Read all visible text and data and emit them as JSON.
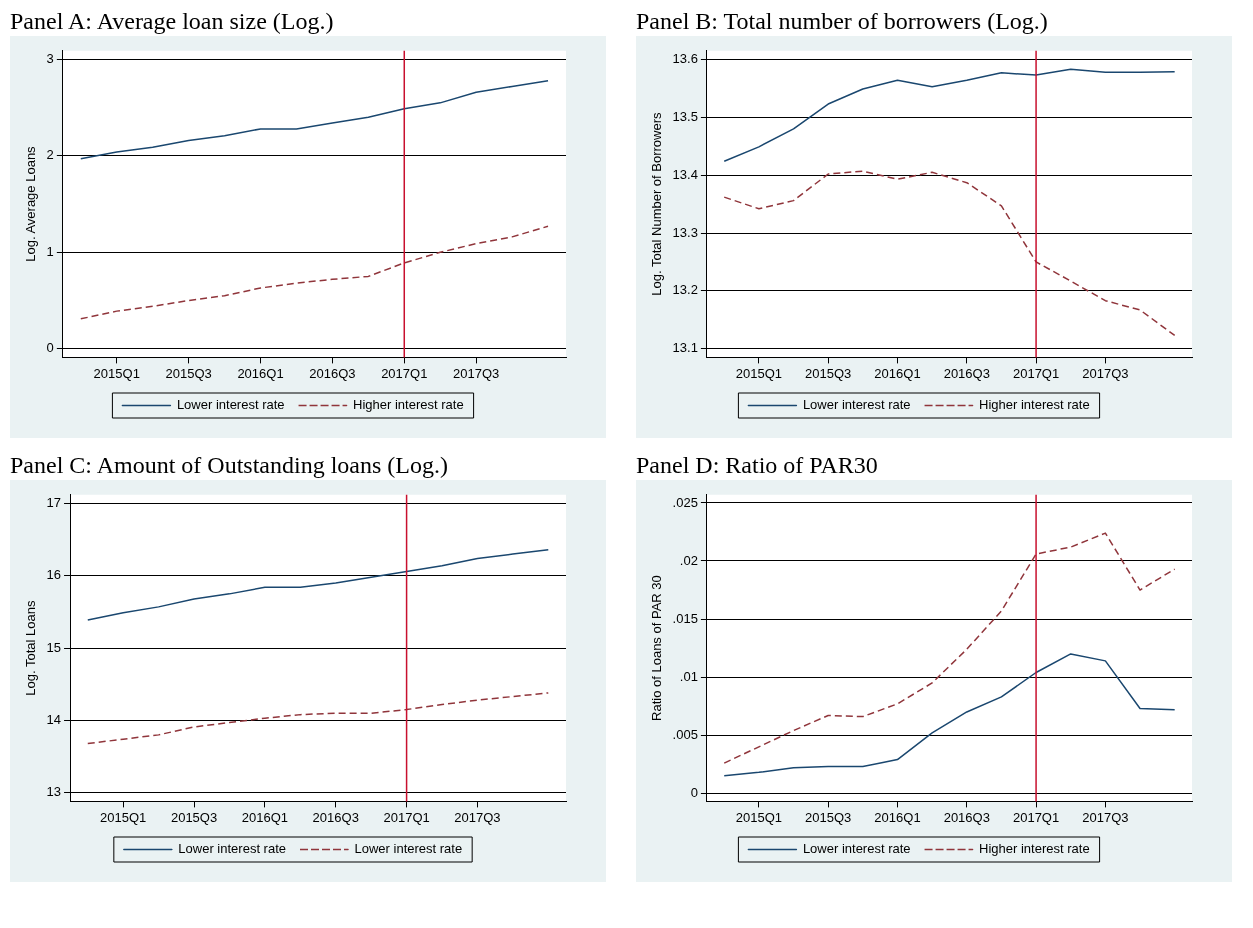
{
  "chart_data": [
    {
      "type": "line",
      "title": "Panel A: Average loan size (Log.)",
      "ylabel": "Log. Average Loans",
      "categories": [
        null,
        "2015Q1",
        null,
        "2015Q3",
        null,
        "2016Q1",
        null,
        "2016Q3",
        null,
        "2017Q1",
        null,
        "2017Q3",
        null,
        null
      ],
      "series": [
        {
          "name": "Lower interest rate",
          "color": "#1a476f",
          "line_style": "solid",
          "values": [
            1.97,
            2.04,
            2.09,
            2.16,
            2.21,
            2.28,
            2.28,
            2.34,
            2.4,
            2.49,
            2.55,
            2.66,
            2.72,
            2.78
          ]
        },
        {
          "name": "Higher interest rate",
          "color": "#90353b",
          "line_style": "dashed",
          "values": [
            0.31,
            0.39,
            0.44,
            0.5,
            0.55,
            0.63,
            0.68,
            0.72,
            0.75,
            0.89,
            1.0,
            1.09,
            1.16,
            1.27
          ]
        }
      ],
      "ylim": [
        -0.09,
        3.09
      ],
      "yticks": [
        0,
        1,
        2,
        3
      ],
      "grid": "y",
      "legend": "bottom",
      "marker": "none",
      "ref_lines": [
        {
          "axis": "x",
          "value": "2017Q1",
          "color": "#c8102e"
        }
      ]
    },
    {
      "type": "line",
      "title": "Panel B: Total number of borrowers (Log.)",
      "ylabel": "Log. Total Number of Borrowers",
      "categories": [
        null,
        "2015Q1",
        null,
        "2015Q3",
        null,
        "2016Q1",
        null,
        "2016Q3",
        null,
        "2017Q1",
        null,
        "2017Q3",
        null,
        null
      ],
      "series": [
        {
          "name": "Lower interest rate",
          "color": "#1a476f",
          "line_style": "solid",
          "values": [
            13.424,
            13.449,
            13.48,
            13.523,
            13.549,
            13.564,
            13.553,
            13.564,
            13.577,
            13.573,
            13.583,
            13.578,
            13.578,
            13.579
          ]
        },
        {
          "name": "Higher interest rate",
          "color": "#90353b",
          "line_style": "dashed",
          "values": [
            13.362,
            13.342,
            13.356,
            13.402,
            13.407,
            13.393,
            13.405,
            13.387,
            13.347,
            13.25,
            13.217,
            13.183,
            13.167,
            13.123
          ]
        }
      ],
      "ylim": [
        13.085,
        13.615
      ],
      "yticks": [
        {
          "value": 13.1,
          "label": "13.1"
        },
        {
          "value": 13.2,
          "label": "13.2"
        },
        {
          "value": 13.3,
          "label": "13.3"
        },
        {
          "value": 13.4,
          "label": "13.4"
        },
        {
          "value": 13.5,
          "label": "13.5"
        },
        {
          "value": 13.6,
          "label": "13.6"
        }
      ],
      "grid": "y",
      "legend": "bottom",
      "marker": "none",
      "ref_lines": [
        {
          "axis": "x",
          "value": "2017Q1",
          "color": "#c8102e"
        }
      ]
    },
    {
      "type": "line",
      "title": "Panel C: Amount of Outstanding loans (Log.)",
      "ylabel": "Log. Total Loans",
      "categories": [
        null,
        "2015Q1",
        null,
        "2015Q3",
        null,
        "2016Q1",
        null,
        "2016Q3",
        null,
        "2017Q1",
        null,
        "2017Q3",
        null,
        null
      ],
      "series": [
        {
          "name": "Lower interest rate",
          "color": "#1a476f",
          "line_style": "solid",
          "values": [
            15.39,
            15.49,
            15.57,
            15.68,
            15.75,
            15.84,
            15.84,
            15.9,
            15.98,
            16.06,
            16.14,
            16.24,
            16.3,
            16.36
          ]
        },
        {
          "name": "Lower interest rate",
          "color": "#90353b",
          "line_style": "dashed",
          "values": [
            13.68,
            13.74,
            13.8,
            13.91,
            13.97,
            14.03,
            14.08,
            14.1,
            14.1,
            14.15,
            14.22,
            14.28,
            14.33,
            14.38
          ]
        }
      ],
      "ylim": [
        12.88,
        17.12
      ],
      "yticks": [
        13,
        14,
        15,
        16,
        17
      ],
      "grid": "y",
      "legend": "bottom",
      "marker": "none",
      "ref_lines": [
        {
          "axis": "x",
          "value": "2017Q1",
          "color": "#c8102e"
        }
      ]
    },
    {
      "type": "line",
      "title": "Panel D: Ratio of PAR30",
      "ylabel": "Ratio of Loans of PAR 30",
      "categories": [
        null,
        "2015Q1",
        null,
        "2015Q3",
        null,
        "2016Q1",
        null,
        "2016Q3",
        null,
        "2017Q1",
        null,
        "2017Q3",
        null,
        null
      ],
      "series": [
        {
          "name": "Lower interest rate",
          "color": "#1a476f",
          "line_style": "solid",
          "values": [
            0.0015,
            0.0018,
            0.0022,
            0.0023,
            0.0023,
            0.0029,
            0.0052,
            0.007,
            0.0083,
            0.0104,
            0.012,
            0.0114,
            0.0073,
            0.0072
          ]
        },
        {
          "name": "Higher interest rate",
          "color": "#90353b",
          "line_style": "dashed",
          "values": [
            0.0026,
            0.004,
            0.0054,
            0.0067,
            0.0066,
            0.0077,
            0.0095,
            0.0124,
            0.0157,
            0.0206,
            0.0212,
            0.0224,
            0.0175,
            0.0193
          ]
        }
      ],
      "ylim": [
        -0.0007,
        0.0257
      ],
      "yticks": [
        {
          "value": 0,
          "label": "0"
        },
        {
          "value": 0.005,
          "label": ".005"
        },
        {
          "value": 0.01,
          "label": ".01"
        },
        {
          "value": 0.015,
          "label": ".015"
        },
        {
          "value": 0.02,
          "label": ".02"
        },
        {
          "value": 0.025,
          "label": ".025"
        }
      ],
      "grid": "y",
      "legend": "bottom",
      "marker": "none",
      "ref_lines": [
        {
          "axis": "x",
          "value": "2017Q1",
          "color": "#c8102e"
        }
      ]
    }
  ]
}
